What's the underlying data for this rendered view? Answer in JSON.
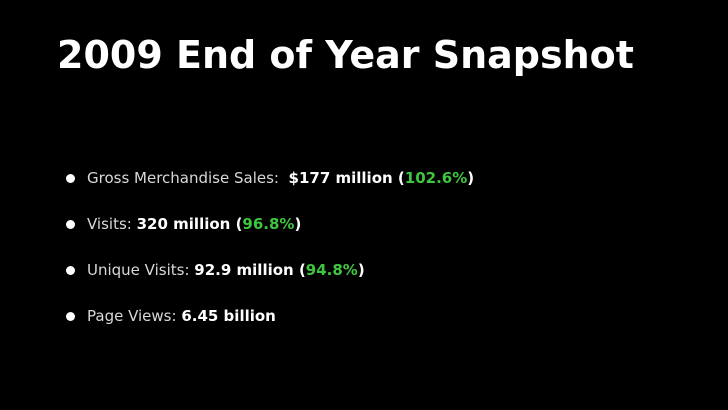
{
  "slide": {
    "title": "2009 End of Year Snapshot",
    "accent_color": "#3ec63e",
    "bullet_icon": "bullet-dot-icon",
    "bullets": [
      {
        "label": "Gross Merchandise Sales:",
        "value": "$177 million",
        "change": "102.6%"
      },
      {
        "label": "Visits:",
        "value": "320 million",
        "change": "96.8%"
      },
      {
        "label": "Unique Visits:",
        "value": "92.9 million",
        "change": "94.8%"
      },
      {
        "label": "Page Views:",
        "value": "6.45 billion"
      }
    ]
  }
}
